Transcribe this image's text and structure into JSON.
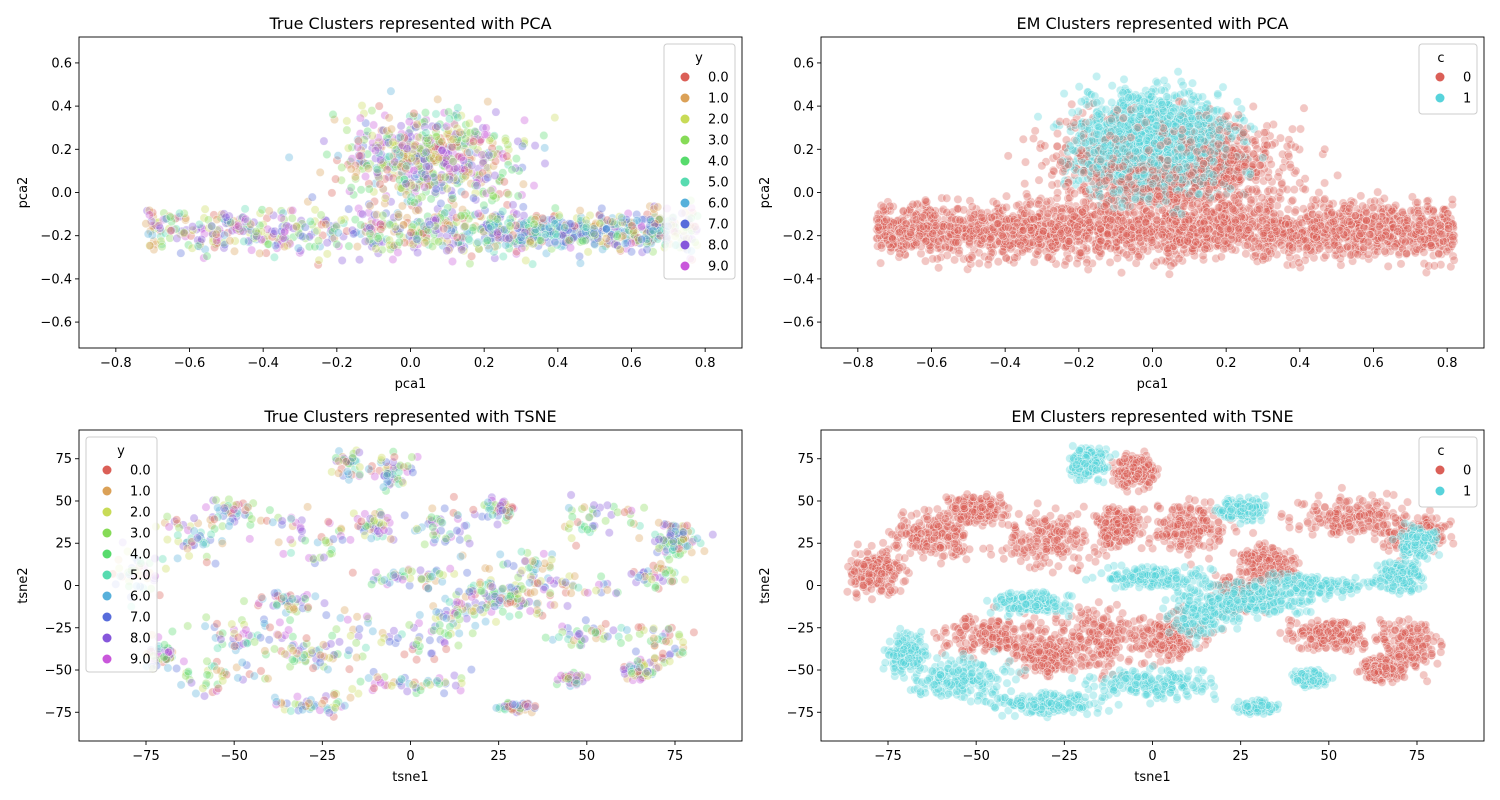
{
  "chart_data": [
    {
      "type": "scatter",
      "title": "True Clusters represented with PCA",
      "xlabel": "pca1",
      "ylabel": "pca2",
      "xlim": [
        -0.9,
        0.9
      ],
      "ylim": [
        -0.72,
        0.72
      ],
      "xticks": [
        -0.8,
        -0.6,
        -0.4,
        -0.2,
        0.0,
        0.2,
        0.4,
        0.6,
        0.8
      ],
      "yticks": [
        -0.6,
        -0.4,
        -0.2,
        0.0,
        0.2,
        0.4,
        0.6
      ],
      "tick_labels_x": [
        "−0.8",
        "−0.6",
        "−0.4",
        "−0.2",
        "0.0",
        "0.2",
        "0.4",
        "0.6",
        "0.8"
      ],
      "tick_labels_y": [
        "−0.6",
        "−0.4",
        "−0.2",
        "0.0",
        "0.2",
        "0.4",
        "0.6"
      ],
      "grid": false,
      "legend": {
        "title": "y",
        "placement": "top-right",
        "entries": [
          {
            "label": "0.0",
            "color": "#db5f57"
          },
          {
            "label": "1.0",
            "color": "#dba157"
          },
          {
            "label": "2.0",
            "color": "#c8db57"
          },
          {
            "label": "3.0",
            "color": "#86db57"
          },
          {
            "label": "4.0",
            "color": "#57db6c"
          },
          {
            "label": "5.0",
            "color": "#57dbb0"
          },
          {
            "label": "6.0",
            "color": "#57b0db"
          },
          {
            "label": "7.0",
            "color": "#576cdb"
          },
          {
            "label": "8.0",
            "color": "#8657db"
          },
          {
            "label": "9.0",
            "color": "#c957db"
          }
        ]
      },
      "point_alpha": 0.35,
      "points_shown": 1600,
      "series": [
        {
          "name": "0.0",
          "approx_points": [
            [
              -0.1,
              -0.2
            ],
            [
              0.1,
              -0.35
            ],
            [
              0.3,
              -0.25
            ],
            [
              -0.2,
              0.1
            ]
          ]
        },
        {
          "name": "1.0",
          "approx_points": [
            [
              0.0,
              -0.25
            ],
            [
              0.2,
              -0.3
            ],
            [
              -0.1,
              0.3
            ],
            [
              0.4,
              -0.2
            ]
          ]
        },
        {
          "name": "2.0",
          "approx_points": [
            [
              -0.3,
              0.2
            ],
            [
              0.0,
              0.4
            ],
            [
              -0.5,
              -0.2
            ],
            [
              0.1,
              0.1
            ]
          ]
        },
        {
          "name": "3.0",
          "approx_points": [
            [
              -0.6,
              -0.25
            ],
            [
              -0.4,
              0.05
            ],
            [
              0.1,
              0.5
            ],
            [
              0.3,
              0.2
            ]
          ]
        },
        {
          "name": "4.0",
          "approx_points": [
            [
              0.0,
              0.3
            ],
            [
              -0.2,
              0.45
            ],
            [
              0.2,
              0.0
            ],
            [
              0.5,
              -0.1
            ]
          ]
        },
        {
          "name": "5.0",
          "approx_points": [
            [
              0.55,
              -0.2
            ],
            [
              0.3,
              -0.1
            ],
            [
              0.7,
              -0.2
            ],
            [
              0.0,
              0.0
            ]
          ]
        },
        {
          "name": "6.0",
          "approx_points": [
            [
              0.5,
              -0.15
            ],
            [
              0.2,
              -0.1
            ],
            [
              0.65,
              -0.25
            ],
            [
              0.1,
              0.2
            ]
          ]
        },
        {
          "name": "7.0",
          "approx_points": [
            [
              0.0,
              -0.1
            ],
            [
              0.2,
              -0.2
            ],
            [
              -0.1,
              -0.15
            ],
            [
              0.3,
              -0.05
            ]
          ]
        },
        {
          "name": "8.0",
          "approx_points": [
            [
              0.1,
              0.0
            ],
            [
              -0.1,
              0.25
            ],
            [
              0.25,
              0.1
            ],
            [
              -0.2,
              -0.1
            ]
          ]
        },
        {
          "name": "9.0",
          "approx_points": [
            [
              0.15,
              0.2
            ],
            [
              -0.15,
              0.4
            ],
            [
              0.05,
              -0.05
            ],
            [
              0.35,
              0.3
            ]
          ]
        }
      ]
    },
    {
      "type": "scatter",
      "title": "EM Clusters represented with PCA",
      "xlabel": "pca1",
      "ylabel": "pca2",
      "xlim": [
        -0.9,
        0.9
      ],
      "ylim": [
        -0.72,
        0.72
      ],
      "xticks": [
        -0.8,
        -0.6,
        -0.4,
        -0.2,
        0.0,
        0.2,
        0.4,
        0.6,
        0.8
      ],
      "yticks": [
        -0.6,
        -0.4,
        -0.2,
        0.0,
        0.2,
        0.4,
        0.6
      ],
      "tick_labels_x": [
        "−0.8",
        "−0.6",
        "−0.4",
        "−0.2",
        "0.0",
        "0.2",
        "0.4",
        "0.6",
        "0.8"
      ],
      "tick_labels_y": [
        "−0.6",
        "−0.4",
        "−0.2",
        "0.0",
        "0.2",
        "0.4",
        "0.6"
      ],
      "grid": false,
      "legend": {
        "title": "c",
        "placement": "top-right",
        "entries": [
          {
            "label": "0",
            "color": "#db5f57"
          },
          {
            "label": "1",
            "color": "#57d3db"
          }
        ]
      },
      "point_alpha": 0.35,
      "points_shown": 6000,
      "series": [
        {
          "name": "0",
          "approx_region": {
            "x": [
              -0.75,
              0.8
            ],
            "y": [
              -0.55,
              0.65
            ],
            "dense_band_y": [
              -0.4,
              0.05
            ]
          }
        },
        {
          "name": "1",
          "approx_region": {
            "x": [
              -0.4,
              0.5
            ],
            "y": [
              -0.5,
              0.65
            ],
            "dense_band_y": [
              -0.1,
              0.55
            ]
          }
        }
      ]
    },
    {
      "type": "scatter",
      "title": "True Clusters represented with TSNE",
      "xlabel": "tsne1",
      "ylabel": "tsne2",
      "xlim": [
        -94,
        94
      ],
      "ylim": [
        -92,
        92
      ],
      "xticks": [
        -75,
        -50,
        -25,
        0,
        25,
        50,
        75
      ],
      "yticks": [
        -75,
        -50,
        -25,
        0,
        25,
        50,
        75
      ],
      "tick_labels_x": [
        "−75",
        "−50",
        "−25",
        "0",
        "25",
        "50",
        "75"
      ],
      "tick_labels_y": [
        "−75",
        "−50",
        "−25",
        "0",
        "25",
        "50",
        "75"
      ],
      "grid": false,
      "legend": {
        "title": "y",
        "placement": "top-left",
        "entries": [
          {
            "label": "0.0",
            "color": "#db5f57"
          },
          {
            "label": "1.0",
            "color": "#dba157"
          },
          {
            "label": "2.0",
            "color": "#c8db57"
          },
          {
            "label": "3.0",
            "color": "#86db57"
          },
          {
            "label": "4.0",
            "color": "#57db6c"
          },
          {
            "label": "5.0",
            "color": "#57dbb0"
          },
          {
            "label": "6.0",
            "color": "#57b0db"
          },
          {
            "label": "7.0",
            "color": "#576cdb"
          },
          {
            "label": "8.0",
            "color": "#8657db"
          },
          {
            "label": "9.0",
            "color": "#c957db"
          }
        ]
      },
      "point_alpha": 0.35,
      "points_shown": 1400
    },
    {
      "type": "scatter",
      "title": "EM Clusters represented with TSNE",
      "xlabel": "tsne1",
      "ylabel": "tsne2",
      "xlim": [
        -94,
        94
      ],
      "ylim": [
        -92,
        92
      ],
      "xticks": [
        -75,
        -50,
        -25,
        0,
        25,
        50,
        75
      ],
      "yticks": [
        -75,
        -50,
        -25,
        0,
        25,
        50,
        75
      ],
      "tick_labels_x": [
        "−75",
        "−50",
        "−25",
        "0",
        "25",
        "50",
        "75"
      ],
      "tick_labels_y": [
        "−75",
        "−50",
        "−25",
        "0",
        "25",
        "50",
        "75"
      ],
      "grid": false,
      "legend": {
        "title": "c",
        "placement": "top-right",
        "entries": [
          {
            "label": "0",
            "color": "#db5f57"
          },
          {
            "label": "1",
            "color": "#57d3db"
          }
        ]
      },
      "point_alpha": 0.35,
      "points_shown": 6500,
      "blobs": [
        {
          "cluster": "0",
          "cx": -78,
          "cy": 8,
          "rx": 8,
          "ry": 14
        },
        {
          "cluster": "0",
          "cx": -62,
          "cy": 30,
          "rx": 12,
          "ry": 14
        },
        {
          "cluster": "0",
          "cx": -50,
          "cy": 45,
          "rx": 8,
          "ry": 8
        },
        {
          "cluster": "0",
          "cx": -28,
          "cy": 28,
          "rx": 14,
          "ry": 16
        },
        {
          "cluster": "0",
          "cx": -10,
          "cy": 35,
          "rx": 6,
          "ry": 10
        },
        {
          "cluster": "0",
          "cx": -5,
          "cy": 68,
          "rx": 6,
          "ry": 10
        },
        {
          "cluster": "0",
          "cx": 10,
          "cy": 35,
          "rx": 12,
          "ry": 14
        },
        {
          "cluster": "0",
          "cx": 33,
          "cy": 12,
          "rx": 8,
          "ry": 10
        },
        {
          "cluster": "0",
          "cx": 55,
          "cy": 40,
          "rx": 14,
          "ry": 12
        },
        {
          "cluster": "0",
          "cx": 75,
          "cy": 30,
          "rx": 8,
          "ry": 10
        },
        {
          "cluster": "0",
          "cx": -45,
          "cy": -30,
          "rx": 14,
          "ry": 12
        },
        {
          "cluster": "0",
          "cx": -30,
          "cy": -42,
          "rx": 8,
          "ry": 10
        },
        {
          "cluster": "0",
          "cx": -15,
          "cy": -32,
          "rx": 10,
          "ry": 18
        },
        {
          "cluster": "0",
          "cx": 5,
          "cy": -30,
          "rx": 10,
          "ry": 14
        },
        {
          "cluster": "0",
          "cx": 25,
          "cy": -5,
          "rx": 8,
          "ry": 10
        },
        {
          "cluster": "0",
          "cx": 50,
          "cy": -30,
          "rx": 12,
          "ry": 8
        },
        {
          "cluster": "0",
          "cx": 72,
          "cy": -35,
          "rx": 8,
          "ry": 16
        },
        {
          "cluster": "0",
          "cx": 65,
          "cy": -50,
          "rx": 5,
          "ry": 6
        },
        {
          "cluster": "1",
          "cx": -18,
          "cy": 72,
          "rx": 5,
          "ry": 10
        },
        {
          "cluster": "1",
          "cx": -55,
          "cy": -55,
          "rx": 14,
          "ry": 12
        },
        {
          "cluster": "1",
          "cx": -30,
          "cy": -70,
          "rx": 14,
          "ry": 6
        },
        {
          "cluster": "1",
          "cx": -70,
          "cy": -40,
          "rx": 5,
          "ry": 10
        },
        {
          "cluster": "1",
          "cx": 0,
          "cy": -58,
          "rx": 18,
          "ry": 8
        },
        {
          "cluster": "1",
          "cx": 15,
          "cy": -15,
          "rx": 10,
          "ry": 14
        },
        {
          "cluster": "1",
          "cx": 30,
          "cy": -10,
          "rx": 14,
          "ry": 8
        },
        {
          "cluster": "1",
          "cx": 0,
          "cy": 5,
          "rx": 14,
          "ry": 6
        },
        {
          "cluster": "1",
          "cx": 45,
          "cy": 0,
          "rx": 18,
          "ry": 6
        },
        {
          "cluster": "1",
          "cx": 70,
          "cy": 5,
          "rx": 6,
          "ry": 8
        },
        {
          "cluster": "1",
          "cx": 75,
          "cy": 25,
          "rx": 5,
          "ry": 8
        },
        {
          "cluster": "1",
          "cx": 30,
          "cy": -72,
          "rx": 5,
          "ry": 3
        },
        {
          "cluster": "1",
          "cx": -35,
          "cy": -10,
          "rx": 10,
          "ry": 6
        },
        {
          "cluster": "1",
          "cx": 25,
          "cy": 45,
          "rx": 6,
          "ry": 6
        },
        {
          "cluster": "1",
          "cx": 45,
          "cy": -55,
          "rx": 4,
          "ry": 4
        }
      ]
    }
  ]
}
